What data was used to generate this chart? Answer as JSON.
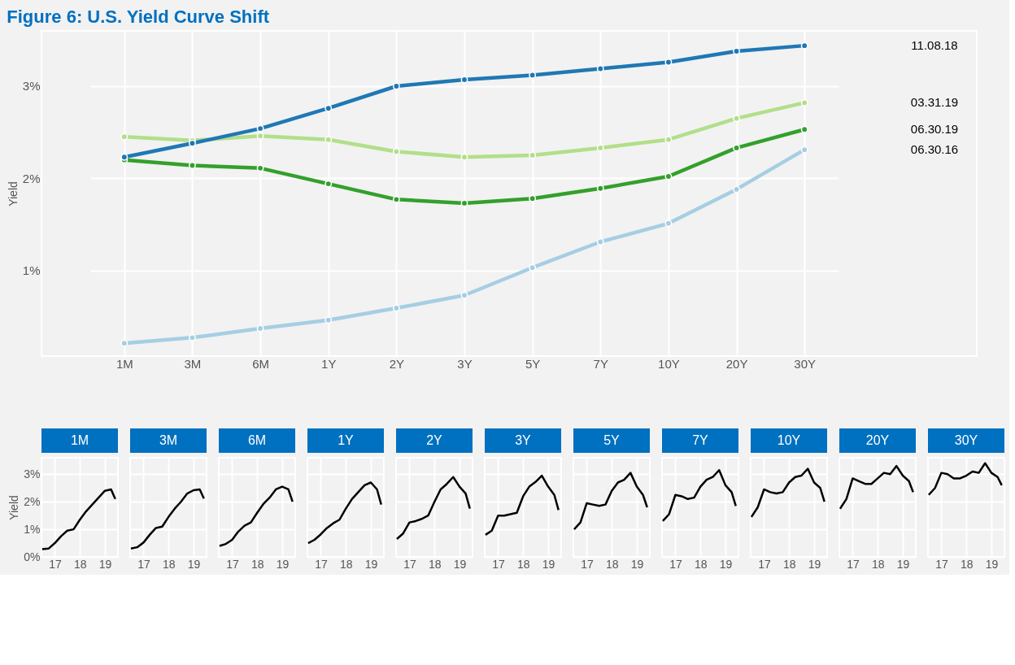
{
  "chart_data": [
    {
      "type": "line",
      "title": "Figure 6: U.S. Yield Curve Shift",
      "ylabel": "Yield",
      "grid": true,
      "legend": false,
      "marker": "circle",
      "line_style": "solid",
      "categories": [
        "1M",
        "3M",
        "6M",
        "1Y",
        "2Y",
        "3Y",
        "5Y",
        "7Y",
        "10Y",
        "20Y",
        "30Y"
      ],
      "ylim": [
        0.07,
        3.6
      ],
      "yticks": [
        {
          "value": 1,
          "label": "1%"
        },
        {
          "value": 2,
          "label": "2%"
        },
        {
          "value": 3,
          "label": "3%"
        }
      ],
      "series": [
        {
          "name": "06.30.16",
          "color": "#a6cee3",
          "values": [
            0.21,
            0.27,
            0.37,
            0.46,
            0.59,
            0.73,
            1.03,
            1.31,
            1.51,
            1.88,
            2.31
          ]
        },
        {
          "name": "06.30.19",
          "color": "#33a02c",
          "values": [
            2.2,
            2.14,
            2.11,
            1.94,
            1.77,
            1.73,
            1.78,
            1.89,
            2.02,
            2.33,
            2.53
          ]
        },
        {
          "name": "03.31.19",
          "color": "#b2df8a",
          "values": [
            2.45,
            2.41,
            2.46,
            2.42,
            2.29,
            2.23,
            2.25,
            2.33,
            2.42,
            2.65,
            2.82
          ]
        },
        {
          "name": "11.08.18",
          "color": "#1f78b4",
          "values": [
            2.23,
            2.38,
            2.54,
            2.76,
            3.0,
            3.07,
            3.12,
            3.19,
            3.26,
            3.38,
            3.44
          ]
        }
      ]
    },
    {
      "type": "line",
      "title": "1M",
      "ylabel": "Yield",
      "grid": true,
      "xlim": [
        "2016-06-20",
        "2019-07-10"
      ],
      "xticks": [
        {
          "value": "2017",
          "label": "17"
        },
        {
          "value": "2018",
          "label": "18"
        },
        {
          "value": "2019",
          "label": "19"
        }
      ],
      "ylim": [
        0,
        3.6
      ],
      "yticks": [
        {
          "value": 0,
          "label": "0%"
        },
        {
          "value": 1,
          "label": "1%"
        },
        {
          "value": 2,
          "label": "2%"
        },
        {
          "value": 3,
          "label": "3%"
        }
      ],
      "x": [
        "2016-07",
        "2016-10",
        "2017-01",
        "2017-04",
        "2017-07",
        "2017-10",
        "2018-01",
        "2018-04",
        "2018-07",
        "2018-10",
        "2019-01",
        "2019-04",
        "2019-06"
      ],
      "series": [
        {
          "color": "#000000",
          "values": [
            0.28,
            0.3,
            0.5,
            0.75,
            0.95,
            1.0,
            1.35,
            1.65,
            1.9,
            2.15,
            2.4,
            2.45,
            2.1
          ]
        }
      ]
    },
    {
      "type": "line",
      "title": "3M",
      "tick_labels": "x",
      "grid": true,
      "xlim": [
        "2016-06-20",
        "2019-07-10"
      ],
      "xticks": [
        {
          "value": "2017",
          "label": "17"
        },
        {
          "value": "2018",
          "label": "18"
        },
        {
          "value": "2019",
          "label": "19"
        }
      ],
      "ylim": [
        0,
        3.6
      ],
      "yticks": [
        0,
        1,
        2,
        3
      ],
      "x": [
        "2016-07",
        "2016-10",
        "2017-01",
        "2017-04",
        "2017-07",
        "2017-10",
        "2018-01",
        "2018-04",
        "2018-07",
        "2018-10",
        "2019-01",
        "2019-04",
        "2019-06"
      ],
      "series": [
        {
          "color": "#000000",
          "values": [
            0.3,
            0.35,
            0.52,
            0.8,
            1.05,
            1.1,
            1.45,
            1.75,
            2.0,
            2.3,
            2.42,
            2.45,
            2.12
          ]
        }
      ]
    },
    {
      "type": "line",
      "title": "6M",
      "tick_labels": "x",
      "grid": true,
      "xlim": [
        "2016-06-20",
        "2019-07-10"
      ],
      "xticks": [
        {
          "value": "2017",
          "label": "17"
        },
        {
          "value": "2018",
          "label": "18"
        },
        {
          "value": "2019",
          "label": "19"
        }
      ],
      "ylim": [
        0,
        3.6
      ],
      "yticks": [
        0,
        1,
        2,
        3
      ],
      "x": [
        "2016-07",
        "2016-10",
        "2017-01",
        "2017-04",
        "2017-07",
        "2017-10",
        "2018-01",
        "2018-04",
        "2018-07",
        "2018-10",
        "2019-01",
        "2019-04",
        "2019-06"
      ],
      "series": [
        {
          "color": "#000000",
          "values": [
            0.4,
            0.47,
            0.62,
            0.92,
            1.13,
            1.25,
            1.6,
            1.92,
            2.15,
            2.45,
            2.55,
            2.45,
            2.0
          ]
        }
      ]
    },
    {
      "type": "line",
      "title": "1Y",
      "tick_labels": "x",
      "grid": true,
      "xlim": [
        "2016-06-20",
        "2019-07-10"
      ],
      "xticks": [
        {
          "value": "2017",
          "label": "17"
        },
        {
          "value": "2018",
          "label": "18"
        },
        {
          "value": "2019",
          "label": "19"
        }
      ],
      "ylim": [
        0,
        3.6
      ],
      "yticks": [
        0,
        1,
        2,
        3
      ],
      "x": [
        "2016-07",
        "2016-10",
        "2017-01",
        "2017-04",
        "2017-07",
        "2017-10",
        "2018-01",
        "2018-04",
        "2018-07",
        "2018-10",
        "2019-01",
        "2019-04",
        "2019-06"
      ],
      "series": [
        {
          "color": "#000000",
          "values": [
            0.5,
            0.62,
            0.82,
            1.05,
            1.22,
            1.35,
            1.75,
            2.1,
            2.35,
            2.6,
            2.7,
            2.45,
            1.9
          ]
        }
      ]
    },
    {
      "type": "line",
      "title": "2Y",
      "tick_labels": "x",
      "grid": true,
      "xlim": [
        "2016-06-20",
        "2019-07-10"
      ],
      "xticks": [
        {
          "value": "2017",
          "label": "17"
        },
        {
          "value": "2018",
          "label": "18"
        },
        {
          "value": "2019",
          "label": "19"
        }
      ],
      "ylim": [
        0,
        3.6
      ],
      "yticks": [
        0,
        1,
        2,
        3
      ],
      "x": [
        "2016-07",
        "2016-10",
        "2017-01",
        "2017-04",
        "2017-07",
        "2017-10",
        "2018-01",
        "2018-04",
        "2018-07",
        "2018-10",
        "2019-01",
        "2019-04",
        "2019-06"
      ],
      "series": [
        {
          "color": "#000000",
          "values": [
            0.65,
            0.85,
            1.25,
            1.3,
            1.38,
            1.5,
            2.0,
            2.45,
            2.65,
            2.9,
            2.55,
            2.3,
            1.75
          ]
        }
      ]
    },
    {
      "type": "line",
      "title": "3Y",
      "tick_labels": "x",
      "grid": true,
      "xlim": [
        "2016-06-20",
        "2019-07-10"
      ],
      "xticks": [
        {
          "value": "2017",
          "label": "17"
        },
        {
          "value": "2018",
          "label": "18"
        },
        {
          "value": "2019",
          "label": "19"
        }
      ],
      "ylim": [
        0,
        3.6
      ],
      "yticks": [
        0,
        1,
        2,
        3
      ],
      "x": [
        "2016-07",
        "2016-10",
        "2017-01",
        "2017-04",
        "2017-07",
        "2017-10",
        "2018-01",
        "2018-04",
        "2018-07",
        "2018-10",
        "2019-01",
        "2019-04",
        "2019-06"
      ],
      "series": [
        {
          "color": "#000000",
          "values": [
            0.8,
            0.95,
            1.5,
            1.5,
            1.55,
            1.6,
            2.2,
            2.55,
            2.72,
            2.95,
            2.55,
            2.25,
            1.7
          ]
        }
      ]
    },
    {
      "type": "line",
      "title": "5Y",
      "tick_labels": "x",
      "grid": true,
      "xlim": [
        "2016-06-20",
        "2019-07-10"
      ],
      "xticks": [
        {
          "value": "2017",
          "label": "17"
        },
        {
          "value": "2018",
          "label": "18"
        },
        {
          "value": "2019",
          "label": "19"
        }
      ],
      "ylim": [
        0,
        3.6
      ],
      "yticks": [
        0,
        1,
        2,
        3
      ],
      "x": [
        "2016-07",
        "2016-10",
        "2017-01",
        "2017-04",
        "2017-07",
        "2017-10",
        "2018-01",
        "2018-04",
        "2018-07",
        "2018-10",
        "2019-01",
        "2019-04",
        "2019-06"
      ],
      "series": [
        {
          "color": "#000000",
          "values": [
            1.0,
            1.25,
            1.95,
            1.9,
            1.85,
            1.9,
            2.4,
            2.7,
            2.8,
            3.05,
            2.55,
            2.25,
            1.8
          ]
        }
      ]
    },
    {
      "type": "line",
      "title": "7Y",
      "tick_labels": "x",
      "grid": true,
      "xlim": [
        "2016-06-20",
        "2019-07-10"
      ],
      "xticks": [
        {
          "value": "2017",
          "label": "17"
        },
        {
          "value": "2018",
          "label": "18"
        },
        {
          "value": "2019",
          "label": "19"
        }
      ],
      "ylim": [
        0,
        3.6
      ],
      "yticks": [
        0,
        1,
        2,
        3
      ],
      "x": [
        "2016-07",
        "2016-10",
        "2017-01",
        "2017-04",
        "2017-07",
        "2017-10",
        "2018-01",
        "2018-04",
        "2018-07",
        "2018-10",
        "2019-01",
        "2019-04",
        "2019-06"
      ],
      "series": [
        {
          "color": "#000000",
          "values": [
            1.3,
            1.55,
            2.25,
            2.2,
            2.1,
            2.15,
            2.55,
            2.8,
            2.9,
            3.15,
            2.6,
            2.35,
            1.85
          ]
        }
      ]
    },
    {
      "type": "line",
      "title": "10Y",
      "tick_labels": "x",
      "grid": true,
      "xlim": [
        "2016-06-20",
        "2019-07-10"
      ],
      "xticks": [
        {
          "value": "2017",
          "label": "17"
        },
        {
          "value": "2018",
          "label": "18"
        },
        {
          "value": "2019",
          "label": "19"
        }
      ],
      "ylim": [
        0,
        3.6
      ],
      "yticks": [
        0,
        1,
        2,
        3
      ],
      "x": [
        "2016-07",
        "2016-10",
        "2017-01",
        "2017-04",
        "2017-07",
        "2017-10",
        "2018-01",
        "2018-04",
        "2018-07",
        "2018-10",
        "2019-01",
        "2019-04",
        "2019-06"
      ],
      "series": [
        {
          "color": "#000000",
          "values": [
            1.45,
            1.8,
            2.45,
            2.35,
            2.3,
            2.35,
            2.7,
            2.9,
            2.95,
            3.2,
            2.7,
            2.5,
            2.0
          ]
        }
      ]
    },
    {
      "type": "line",
      "title": "20Y",
      "tick_labels": "x",
      "grid": true,
      "xlim": [
        "2016-06-20",
        "2019-07-10"
      ],
      "xticks": [
        {
          "value": "2017",
          "label": "17"
        },
        {
          "value": "2018",
          "label": "18"
        },
        {
          "value": "2019",
          "label": "19"
        }
      ],
      "ylim": [
        0,
        3.6
      ],
      "yticks": [
        0,
        1,
        2,
        3
      ],
      "x": [
        "2016-07",
        "2016-10",
        "2017-01",
        "2017-04",
        "2017-07",
        "2017-10",
        "2018-01",
        "2018-04",
        "2018-07",
        "2018-10",
        "2019-01",
        "2019-04",
        "2019-06"
      ],
      "series": [
        {
          "color": "#000000",
          "values": [
            1.75,
            2.1,
            2.85,
            2.75,
            2.65,
            2.65,
            2.85,
            3.05,
            3.0,
            3.3,
            2.95,
            2.75,
            2.35
          ]
        }
      ]
    },
    {
      "type": "line",
      "title": "30Y",
      "tick_labels": "x",
      "grid": true,
      "xlim": [
        "2016-06-20",
        "2019-07-10"
      ],
      "xticks": [
        {
          "value": "2017",
          "label": "17"
        },
        {
          "value": "2018",
          "label": "18"
        },
        {
          "value": "2019",
          "label": "19"
        }
      ],
      "ylim": [
        0,
        3.6
      ],
      "yticks": [
        0,
        1,
        2,
        3
      ],
      "x": [
        "2016-07",
        "2016-10",
        "2017-01",
        "2017-04",
        "2017-07",
        "2017-10",
        "2018-01",
        "2018-04",
        "2018-07",
        "2018-10",
        "2019-01",
        "2019-04",
        "2019-06"
      ],
      "series": [
        {
          "color": "#000000",
          "values": [
            2.25,
            2.5,
            3.05,
            3.0,
            2.85,
            2.85,
            2.95,
            3.1,
            3.05,
            3.4,
            3.05,
            2.9,
            2.6
          ]
        }
      ]
    }
  ]
}
